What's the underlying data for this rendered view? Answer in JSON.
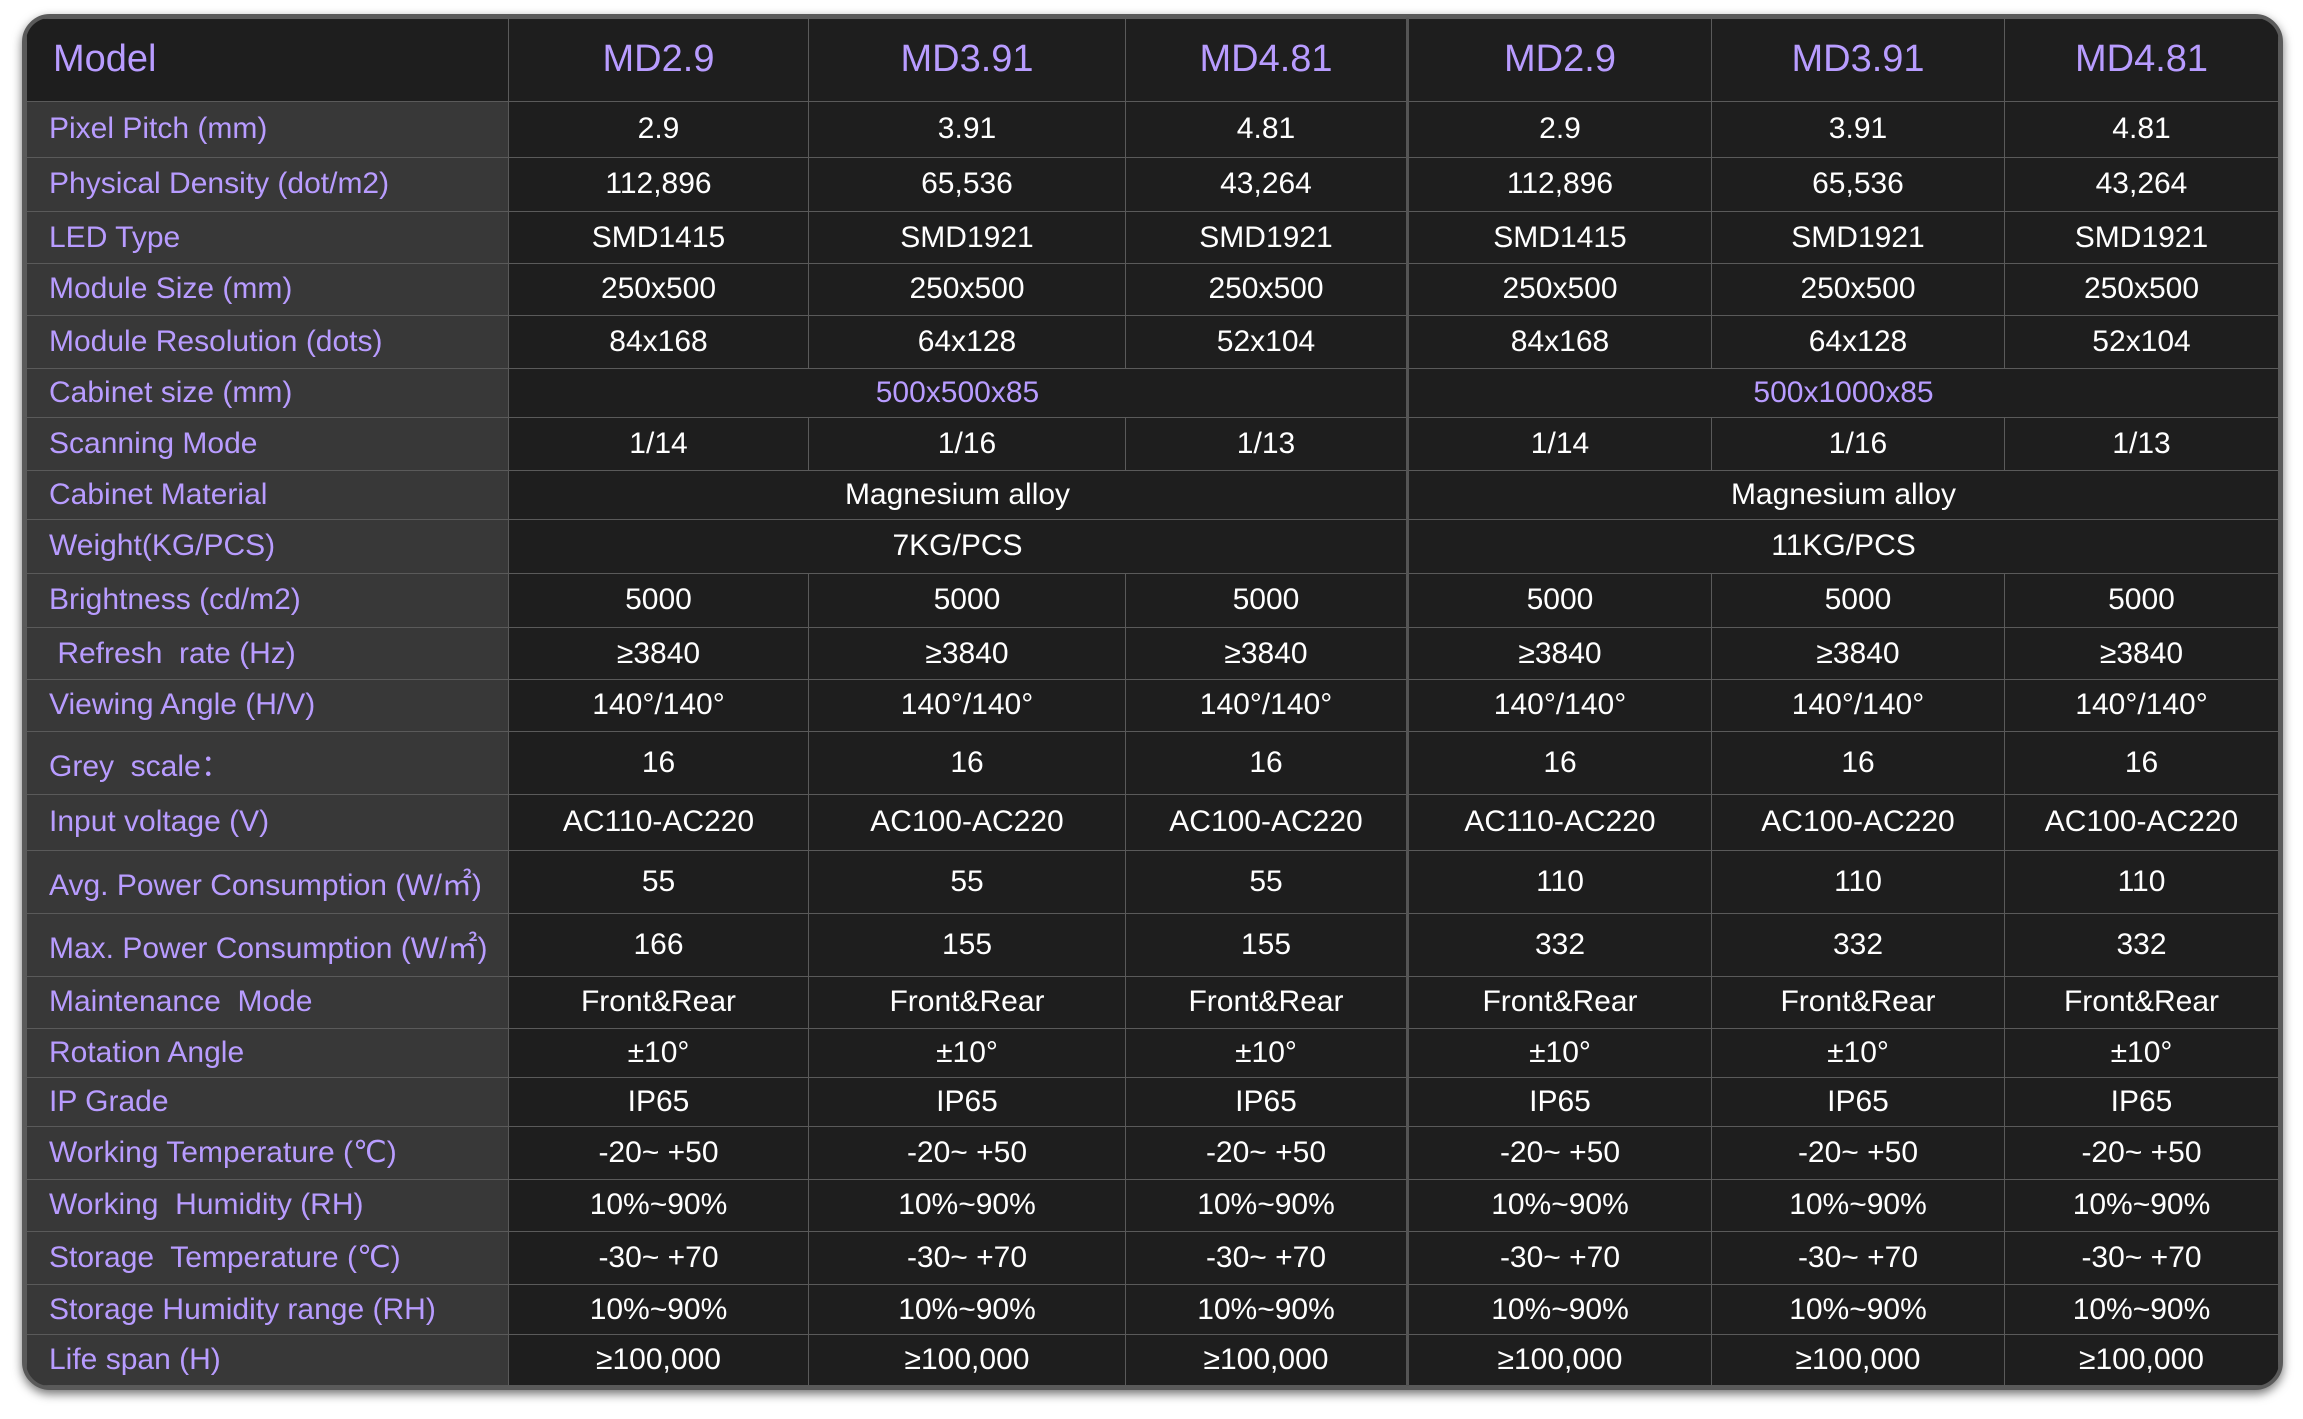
{
  "table": {
    "header": {
      "label": "Model",
      "models": [
        "MD2.9",
        "MD3.91",
        "MD4.81",
        "MD2.9",
        "MD3.91",
        "MD4.81"
      ]
    },
    "rows": [
      {
        "label": "Pixel Pitch (mm)",
        "values": [
          "2.9",
          "3.91",
          "4.81",
          "2.9",
          "3.91",
          "4.81"
        ]
      },
      {
        "label": "Physical Density (dot/m2)",
        "values": [
          "112,896",
          "65,536",
          "43,264",
          "112,896",
          "65,536",
          "43,264"
        ]
      },
      {
        "label": "LED Type",
        "values": [
          "SMD1415",
          "SMD1921",
          "SMD1921",
          "SMD1415",
          "SMD1921",
          "SMD1921"
        ]
      },
      {
        "label": "Module Size (mm)",
        "values": [
          "250x500",
          "250x500",
          "250x500",
          "250x500",
          "250x500",
          "250x500"
        ]
      },
      {
        "label": "Module Resolution (dots)",
        "values": [
          "84x168",
          "64x128",
          "52x104",
          "84x168",
          "64x128",
          "52x104"
        ]
      },
      {
        "label": "Cabinet size (mm)",
        "merged": [
          "500x500x85",
          "500x1000x85"
        ]
      },
      {
        "label": "Scanning Mode",
        "values": [
          "1/14",
          "1/16",
          "1/13",
          "1/14",
          "1/16",
          "1/13"
        ]
      },
      {
        "label": "Cabinet Material",
        "merged": [
          "Magnesium alloy",
          "Magnesium alloy"
        ]
      },
      {
        "label": "Weight(KG/PCS)",
        "merged": [
          "7KG/PCS",
          "11KG/PCS"
        ]
      },
      {
        "label": "Brightness (cd/m2)",
        "values": [
          "5000",
          "5000",
          "5000",
          "5000",
          "5000",
          "5000"
        ]
      },
      {
        "label": " Refresh  rate (Hz)",
        "values": [
          "≥3840",
          "≥3840",
          "≥3840",
          "≥3840",
          "≥3840",
          "≥3840"
        ]
      },
      {
        "label": "Viewing Angle (H/V)",
        "values": [
          "140°/140°",
          "140°/140°",
          "140°/140°",
          "140°/140°",
          "140°/140°",
          "140°/140°"
        ]
      },
      {
        "label": "Grey  scale：",
        "values": [
          "16",
          "16",
          "16",
          "16",
          "16",
          "16"
        ]
      },
      {
        "label": "Input voltage (V)",
        "values": [
          "AC110-AC220",
          "AC100-AC220",
          "AC100-AC220",
          "AC110-AC220",
          "AC100-AC220",
          "AC100-AC220"
        ]
      },
      {
        "label": "Avg. Power Consumption (W/㎡)",
        "values": [
          "55",
          "55",
          "55",
          "110",
          "110",
          "110"
        ]
      },
      {
        "label": "Max. Power Consumption (W/㎡)",
        "values": [
          "166",
          "155",
          "155",
          "332",
          "332",
          "332"
        ]
      },
      {
        "label": "Maintenance  Mode",
        "values": [
          "Front&Rear",
          "Front&Rear",
          "Front&Rear",
          "Front&Rear",
          "Front&Rear",
          "Front&Rear"
        ]
      },
      {
        "label": "Rotation Angle",
        "values": [
          "±10°",
          "±10°",
          "±10°",
          "±10°",
          "±10°",
          "±10°"
        ]
      },
      {
        "label": "IP Grade",
        "values": [
          "IP65",
          "IP65",
          "IP65",
          "IP65",
          "IP65",
          "IP65"
        ]
      },
      {
        "label": "Working Temperature (℃)",
        "values": [
          "-20~ +50",
          "-20~ +50",
          "-20~ +50",
          "-20~ +50",
          "-20~ +50",
          "-20~ +50"
        ]
      },
      {
        "label": "Working  Humidity (RH)",
        "values": [
          "10%~90%",
          "10%~90%",
          "10%~90%",
          "10%~90%",
          "10%~90%",
          "10%~90%"
        ]
      },
      {
        "label": "Storage  Temperature (℃)",
        "values": [
          "-30~ +70",
          "-30~ +70",
          "-30~ +70",
          "-30~ +70",
          "-30~ +70",
          "-30~ +70"
        ]
      },
      {
        "label": "Storage Humidity range (RH)",
        "values": [
          "10%~90%",
          "10%~90%",
          "10%~90%",
          "10%~90%",
          "10%~90%",
          "10%~90%"
        ]
      },
      {
        "label": "Life span (H)",
        "values": [
          "≥100,000",
          "≥100,000",
          "≥100,000",
          "≥100,000",
          "≥100,000",
          "≥100,000"
        ]
      }
    ]
  },
  "colors": {
    "label_text": "#b89cff",
    "value_text": "#ffffff",
    "label_bg": "#383838",
    "cell_bg": "#1e1e1e",
    "border": "#5a5a5a"
  }
}
